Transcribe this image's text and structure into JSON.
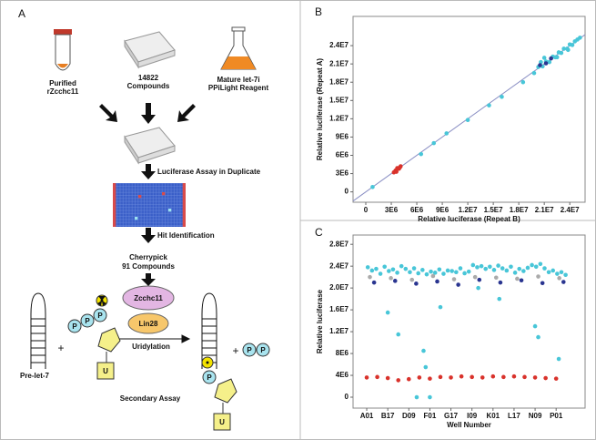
{
  "diagram": {
    "panel_label": "A",
    "tube_label": [
      "Purified",
      "rZcchc11"
    ],
    "plate_label": [
      "14822",
      "Compounds"
    ],
    "flask_label": [
      "Mature let-7i",
      "PPiLight Reagent"
    ],
    "step1": "Luciferase Assay in Duplicate",
    "step2": "Hit Identification",
    "cherrypick": [
      "Cherrypick",
      "91 Compounds"
    ],
    "enzyme1": "Zcchc11",
    "enzyme2": "Lin28",
    "reaction": "Uridylation",
    "substrate": "Pre-let-7",
    "plus": "+",
    "phosphate": "P",
    "uridine": "U",
    "assay": "Secondary Assay"
  },
  "chart_data": [
    {
      "type": "scatter",
      "panel_label": "B",
      "x_label": "Relative luciferase (Repeat B)",
      "y_label": "Relative luciferase (Repeat A)",
      "xlim": [
        -1500000,
        25800000
      ],
      "ylim": [
        -1700000,
        28800000
      ],
      "identity_line": true,
      "xticks": [
        0,
        {
          "value": 3000000,
          "label": "3E6"
        },
        {
          "value": 6000000,
          "label": "6E6"
        },
        {
          "value": 9000000,
          "label": "9E6"
        },
        {
          "value": 12000000,
          "label": "1.2E7"
        },
        {
          "value": 15000000,
          "label": "1.5E7"
        },
        {
          "value": 18000000,
          "label": "1.8E7"
        },
        {
          "value": 21000000,
          "label": "2.1E7"
        },
        {
          "value": 24000000,
          "label": "2.4E7"
        }
      ],
      "yticks": [
        0,
        {
          "value": 3000000,
          "label": "3E6"
        },
        {
          "value": 6000000,
          "label": "6E6"
        },
        {
          "value": 9000000,
          "label": "9E6"
        },
        {
          "value": 12000000,
          "label": "1.2E7"
        },
        {
          "value": 15000000,
          "label": "1.5E7"
        },
        {
          "value": 18000000,
          "label": "1.8E7"
        },
        {
          "value": 21000000,
          "label": "2.1E7"
        },
        {
          "value": 24000000,
          "label": "2.4E7"
        }
      ],
      "series": [
        {
          "color": "#d9322b",
          "x": [
            3300000,
            3500000,
            3700000,
            3900000,
            4100000,
            3600000,
            4000000
          ],
          "values": [
            3200000,
            3500000,
            3900000,
            3800000,
            4200000,
            3300000,
            4000000
          ]
        },
        {
          "color": "#48c6d8",
          "x": [
            800000,
            6500000,
            8000000,
            9500000,
            12000000,
            14500000,
            16000000,
            18500000,
            19800000,
            20300000,
            20800000,
            21200000,
            21600000,
            22000000,
            22300000,
            22700000,
            23000000,
            23300000,
            23700000,
            24000000,
            24300000,
            24600000,
            24900000,
            25200000,
            20600000,
            22500000,
            23800000,
            21000000
          ],
          "values": [
            800000,
            6200000,
            8000000,
            9600000,
            11800000,
            14200000,
            15600000,
            18000000,
            19500000,
            20500000,
            20600000,
            21400000,
            21300000,
            22200000,
            22100000,
            22900000,
            22800000,
            23500000,
            23500000,
            24200000,
            24100000,
            24700000,
            25000000,
            25300000,
            21300000,
            22100000,
            23300000,
            22000000
          ]
        },
        {
          "color": "#2a3590",
          "x": [
            20500000,
            21200000,
            21800000
          ],
          "values": [
            20800000,
            21100000,
            21900000
          ]
        }
      ]
    },
    {
      "type": "scatter",
      "panel_label": "C",
      "x_label": "Well Number",
      "y_label": "Relative luciferase",
      "xlim": [
        -26,
        415
      ],
      "ylim": [
        -2000000,
        29700000
      ],
      "identity_line": false,
      "xticks": [
        {
          "value": 0,
          "label": "A01"
        },
        {
          "value": 40,
          "label": "B17"
        },
        {
          "value": 80,
          "label": "D09"
        },
        {
          "value": 120,
          "label": "F01"
        },
        {
          "value": 160,
          "label": "G17"
        },
        {
          "value": 200,
          "label": "I09"
        },
        {
          "value": 240,
          "label": "K01"
        },
        {
          "value": 280,
          "label": "L17"
        },
        {
          "value": 320,
          "label": "N09"
        },
        {
          "value": 360,
          "label": "P01"
        }
      ],
      "yticks": [
        0,
        {
          "value": 4000000,
          "label": "4E6"
        },
        {
          "value": 8000000,
          "label": "8E6"
        },
        {
          "value": 12000000,
          "label": "1.2E7"
        },
        {
          "value": 16000000,
          "label": "1.6E7"
        },
        {
          "value": 20000000,
          "label": "2.0E7"
        },
        {
          "value": 24000000,
          "label": "2.4E7"
        },
        {
          "value": 28000000,
          "label": "2.8E7"
        }
      ],
      "series": [
        {
          "color": "#d9322b",
          "x": [
            0,
            20,
            40,
            60,
            80,
            100,
            120,
            140,
            160,
            180,
            200,
            220,
            240,
            260,
            280,
            300,
            320,
            340,
            360
          ],
          "values": [
            3600000,
            3700000,
            3500000,
            3100000,
            3300000,
            3600000,
            3400000,
            3700000,
            3600000,
            3800000,
            3700000,
            3600000,
            3800000,
            3700000,
            3800000,
            3700000,
            3600000,
            3500000,
            3400000
          ]
        },
        {
          "color": "#aaaaaa",
          "x": [
            6,
            46,
            86,
            126,
            166,
            206,
            246,
            286,
            326,
            366
          ],
          "values": [
            22000000,
            21800000,
            21500000,
            22200000,
            21600000,
            22000000,
            21900000,
            21700000,
            22100000,
            21800000
          ]
        },
        {
          "color": "#2a3590",
          "x": [
            14,
            54,
            94,
            134,
            174,
            214,
            254,
            294,
            334,
            374
          ],
          "values": [
            21000000,
            21300000,
            20800000,
            21200000,
            20600000,
            21500000,
            21000000,
            21400000,
            20900000,
            21100000
          ]
        },
        {
          "color": "#48c6d8",
          "x": [
            2,
            10,
            18,
            26,
            34,
            42,
            50,
            58,
            66,
            74,
            82,
            90,
            98,
            106,
            114,
            122,
            130,
            138,
            146,
            154,
            162,
            170,
            178,
            186,
            194,
            202,
            210,
            218,
            226,
            234,
            242,
            250,
            258,
            266,
            274,
            282,
            290,
            298,
            306,
            314,
            322,
            330,
            338,
            346,
            354,
            362,
            370,
            378,
            40,
            60,
            95,
            108,
            112,
            120,
            140,
            212,
            252,
            320,
            326,
            365
          ],
          "values": [
            23800000,
            23200000,
            23500000,
            22600000,
            23900000,
            23100000,
            23400000,
            22800000,
            24000000,
            23500000,
            22900000,
            23600000,
            22700000,
            23300000,
            22500000,
            23000000,
            22800000,
            23400000,
            22600000,
            23200000,
            23100000,
            22900000,
            23600000,
            22700000,
            23000000,
            24200000,
            23800000,
            24000000,
            23500000,
            23900000,
            23300000,
            24100000,
            23600000,
            23200000,
            23900000,
            22800000,
            23500000,
            23100000,
            23700000,
            24200000,
            23900000,
            24400000,
            23600000,
            22900000,
            23200000,
            22600000,
            22900000,
            22400000,
            15500000,
            11500000,
            0,
            8500000,
            5500000,
            0,
            16500000,
            20000000,
            18000000,
            13000000,
            11000000,
            7000000
          ]
        }
      ]
    }
  ]
}
